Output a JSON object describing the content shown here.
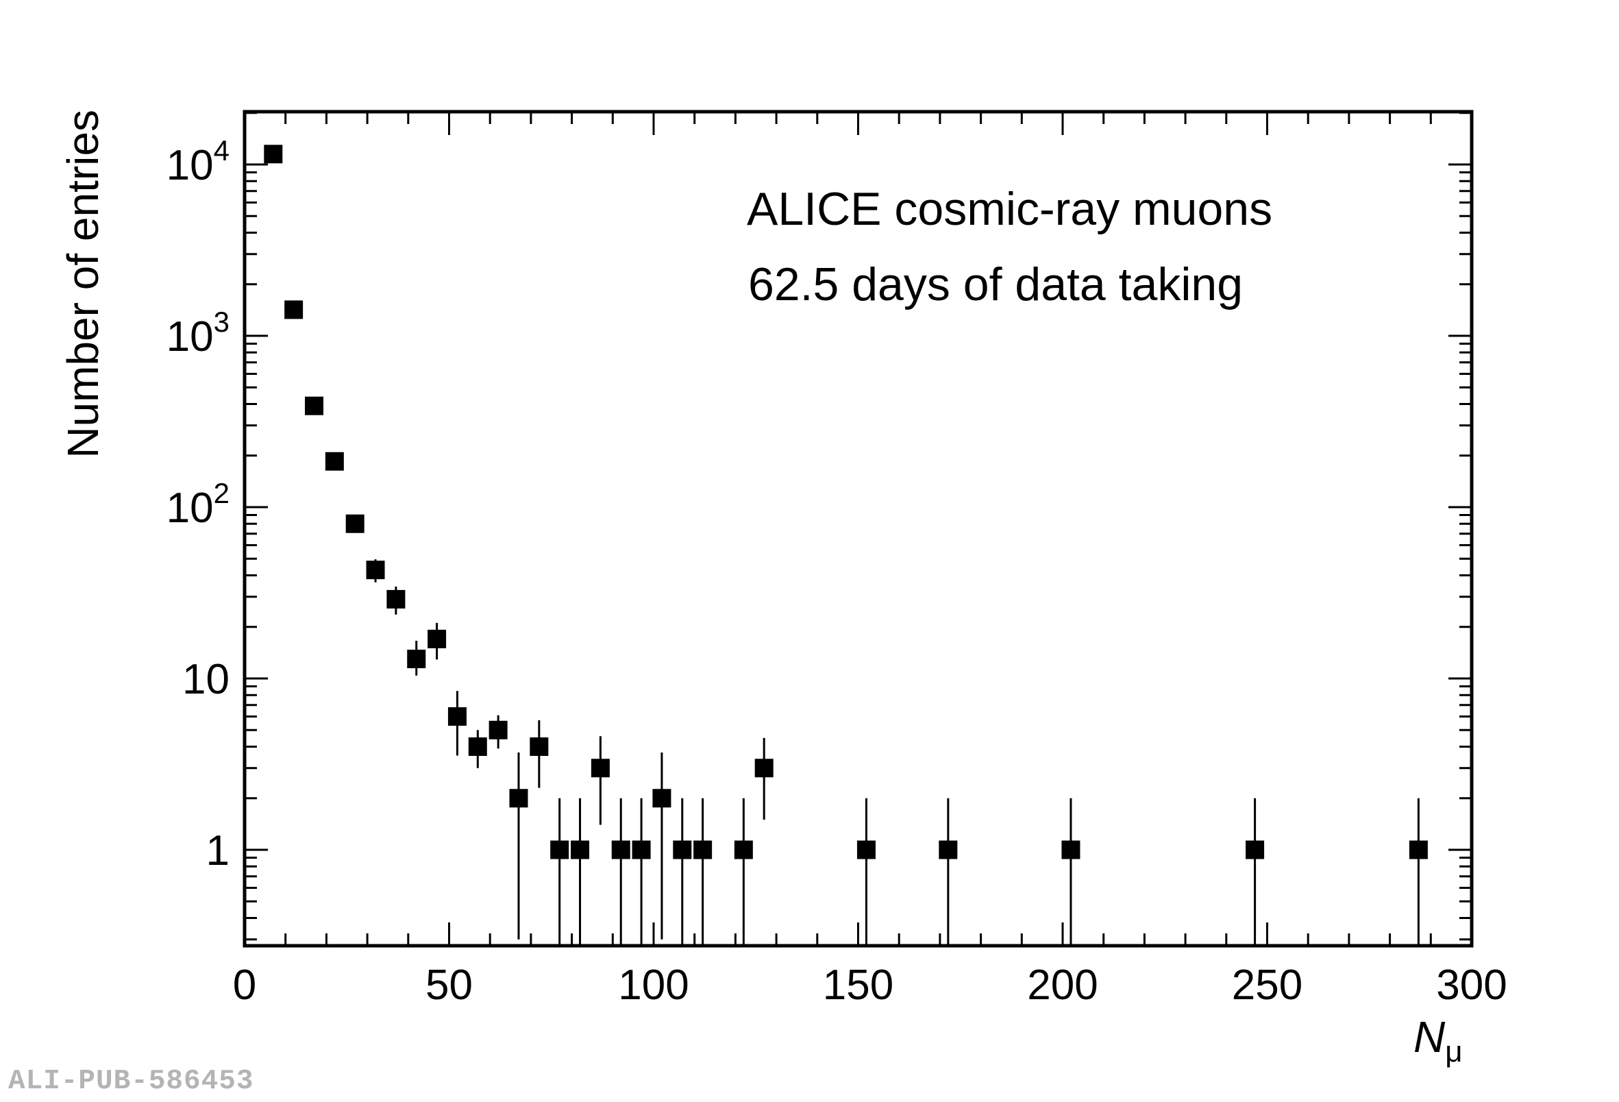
{
  "chart_data": {
    "type": "scatter",
    "annotations": [
      "ALICE cosmic-ray muons",
      "62.5 days of data taking"
    ],
    "xlabel": "N",
    "xlabel_subscript": "μ",
    "ylabel": "Number of entries",
    "xlim": [
      0,
      300
    ],
    "ylim": [
      0.28,
      20000
    ],
    "yscale": "log",
    "x_ticks": [
      0,
      50,
      100,
      150,
      200,
      250,
      300
    ],
    "y_ticks": [
      {
        "value": 1,
        "label": "1"
      },
      {
        "value": 10,
        "label": "10"
      },
      {
        "value": 100,
        "label": "10",
        "exp": "2"
      },
      {
        "value": 1000,
        "label": "10",
        "exp": "3"
      },
      {
        "value": 10000,
        "label": "10",
        "exp": "4"
      }
    ],
    "series": [
      {
        "points": [
          {
            "x": 7,
            "y": 11500,
            "lo": 11393,
            "hi": 11607
          },
          {
            "x": 12,
            "y": 1420,
            "lo": 1382,
            "hi": 1458
          },
          {
            "x": 17,
            "y": 390,
            "lo": 370,
            "hi": 410
          },
          {
            "x": 22,
            "y": 185,
            "lo": 171,
            "hi": 199
          },
          {
            "x": 27,
            "y": 80,
            "lo": 71,
            "hi": 89
          },
          {
            "x": 32,
            "y": 43,
            "lo": 36.4,
            "hi": 49.6
          },
          {
            "x": 37,
            "y": 29,
            "lo": 23.6,
            "hi": 34.4
          },
          {
            "x": 42,
            "y": 13,
            "lo": 10.4,
            "hi": 16.6
          },
          {
            "x": 47,
            "y": 17,
            "lo": 12.9,
            "hi": 21.1
          },
          {
            "x": 52,
            "y": 6,
            "lo": 3.55,
            "hi": 8.45
          },
          {
            "x": 57,
            "y": 4,
            "lo": 3.0,
            "hi": 5.0
          },
          {
            "x": 62,
            "y": 5,
            "lo": 3.9,
            "hi": 6.1
          },
          {
            "x": 67,
            "y": 2,
            "lo": 0.3,
            "hi": 3.7
          },
          {
            "x": 72,
            "y": 4,
            "lo": 2.3,
            "hi": 5.7
          },
          {
            "x": 77,
            "y": 1,
            "lo": 0.1,
            "hi": 2.0
          },
          {
            "x": 82,
            "y": 1,
            "lo": 0.1,
            "hi": 2.0
          },
          {
            "x": 87,
            "y": 3,
            "lo": 1.4,
            "hi": 4.6
          },
          {
            "x": 92,
            "y": 1,
            "lo": 0.1,
            "hi": 2.0
          },
          {
            "x": 97,
            "y": 1,
            "lo": 0.1,
            "hi": 2.0
          },
          {
            "x": 102,
            "y": 2,
            "lo": 0.3,
            "hi": 3.7
          },
          {
            "x": 107,
            "y": 1,
            "lo": 0.1,
            "hi": 2.0
          },
          {
            "x": 112,
            "y": 1,
            "lo": 0.1,
            "hi": 2.0
          },
          {
            "x": 122,
            "y": 1,
            "lo": 0.1,
            "hi": 2.0
          },
          {
            "x": 127,
            "y": 3,
            "lo": 1.5,
            "hi": 4.5
          },
          {
            "x": 152,
            "y": 1,
            "lo": 0.1,
            "hi": 2.0
          },
          {
            "x": 172,
            "y": 1,
            "lo": 0.1,
            "hi": 2.0
          },
          {
            "x": 202,
            "y": 1,
            "lo": 0.1,
            "hi": 2.0
          },
          {
            "x": 247,
            "y": 1,
            "lo": 0.1,
            "hi": 2.0
          },
          {
            "x": 287,
            "y": 1,
            "lo": 0.1,
            "hi": 2.0
          }
        ]
      }
    ]
  },
  "watermark": "ALI-PUB-586453",
  "colors": {
    "marker": "#000000",
    "axis": "#000000",
    "watermark": "#b4b4b4"
  }
}
